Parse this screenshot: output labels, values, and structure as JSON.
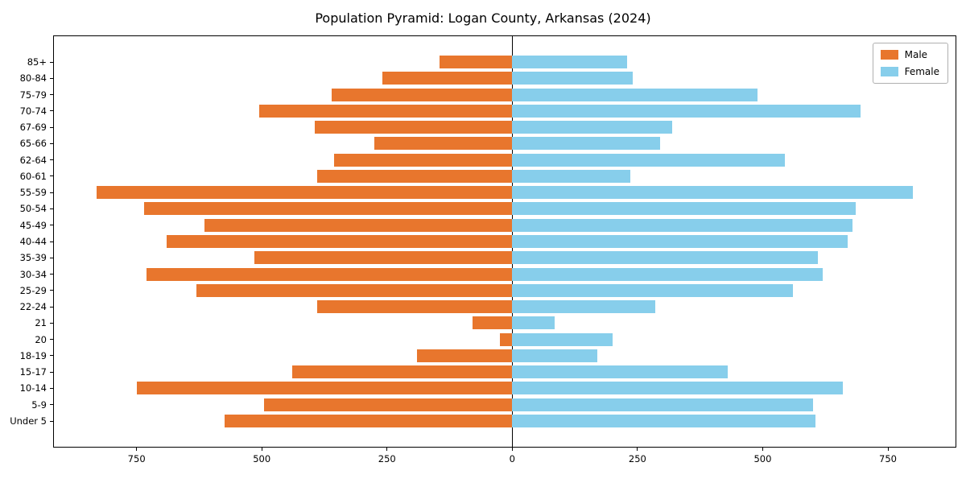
{
  "chart_data": {
    "type": "bar",
    "variant": "population-pyramid",
    "title": "Population Pyramid: Logan County, Arkansas (2024)",
    "grid": "off",
    "categories": [
      "85+",
      "80-84",
      "75-79",
      "70-74",
      "67-69",
      "65-66",
      "62-64",
      "60-61",
      "55-59",
      "50-54",
      "45-49",
      "40-44",
      "35-39",
      "30-34",
      "25-29",
      "22-24",
      "21",
      "20",
      "18-19",
      "15-17",
      "10-14",
      "5-9",
      "Under 5"
    ],
    "series": [
      {
        "name": "Male",
        "side": "left",
        "color": "#e8762d",
        "values": [
          145,
          260,
          360,
          505,
          395,
          275,
          355,
          390,
          830,
          735,
          615,
          690,
          515,
          730,
          630,
          390,
          80,
          25,
          190,
          440,
          750,
          495,
          575
        ]
      },
      {
        "name": "Female",
        "side": "right",
        "color": "#87ceeb",
        "values": [
          230,
          240,
          490,
          695,
          320,
          295,
          545,
          235,
          800,
          685,
          680,
          670,
          610,
          620,
          560,
          285,
          85,
          200,
          170,
          430,
          660,
          600,
          605
        ]
      }
    ],
    "x_axis": {
      "tick_values": [
        -750,
        -500,
        -250,
        0,
        250,
        500,
        750
      ],
      "tick_labels": [
        "750",
        "500",
        "250",
        "0",
        "250",
        "500",
        "750"
      ],
      "xlim": [
        -915,
        885
      ]
    },
    "legend": {
      "position": "upper right",
      "entries": [
        "Male",
        "Female"
      ]
    },
    "colors": {
      "axis": "#000000",
      "background": "#ffffff",
      "legend_frame": "#b0b0b0"
    }
  }
}
